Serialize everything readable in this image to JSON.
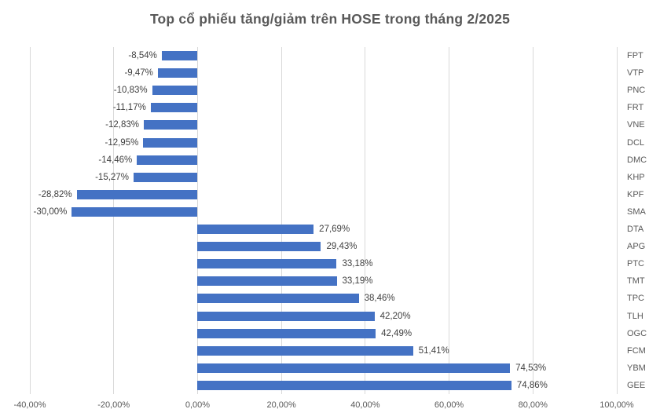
{
  "title": "Top cổ phiếu tăng/giảm trên HOSE trong tháng 2/2025",
  "colors": {
    "bar": "#4472c4",
    "gridline": "#d9d9d9",
    "title_text": "#595959",
    "axis_text": "#595959",
    "value_text": "#404040"
  },
  "chart_data": {
    "type": "bar",
    "orientation": "horizontal",
    "title": "Top cổ phiếu tăng/giảm trên HOSE trong tháng 2/2025",
    "categories": [
      "FPT",
      "VTP",
      "PNC",
      "FRT",
      "VNE",
      "DCL",
      "DMC",
      "KHP",
      "KPF",
      "SMA",
      "DTA",
      "APG",
      "PTC",
      "TMT",
      "TPC",
      "TLH",
      "OGC",
      "FCM",
      "YBM",
      "GEE"
    ],
    "values": [
      -8.54,
      -9.47,
      -10.83,
      -11.17,
      -12.83,
      -12.95,
      -14.46,
      -15.27,
      -28.82,
      -30.0,
      27.69,
      29.43,
      33.18,
      33.19,
      38.46,
      42.2,
      42.49,
      51.41,
      74.53,
      74.86
    ],
    "value_labels": [
      "-8,54%",
      "-9,47%",
      "-10,83%",
      "-11,17%",
      "-12,83%",
      "-12,95%",
      "-14,46%",
      "-15,27%",
      "-28,82%",
      "-30,00%",
      "27,69%",
      "29,43%",
      "33,18%",
      "33,19%",
      "38,46%",
      "42,20%",
      "42,49%",
      "51,41%",
      "74,53%",
      "74,86%"
    ],
    "xlabel": "",
    "ylabel": "",
    "xlim": [
      -40,
      100
    ],
    "x_ticks": [
      -40,
      -20,
      0,
      20,
      40,
      60,
      80,
      100
    ],
    "x_tick_labels": [
      "-40,00%",
      "-20,00%",
      "0,00%",
      "20,00%",
      "40,00%",
      "60,00%",
      "80,00%",
      "100,00%"
    ],
    "grid": true,
    "legend": false,
    "category_axis_side": "right"
  }
}
